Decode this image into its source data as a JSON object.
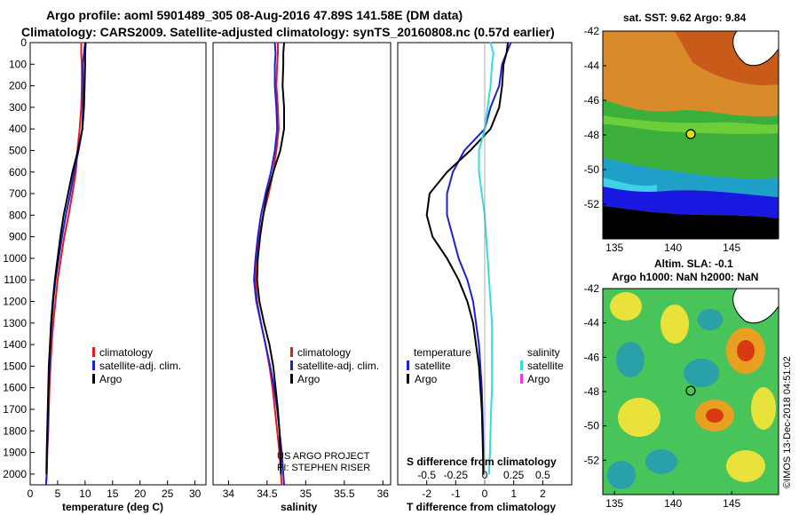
{
  "header": {
    "line1": "Argo profile: aoml 5901489_305 08-Aug-2016 47.89S 141.58E (DM data)",
    "line2": "Climatology: CARS2009. Satellite-adjusted climatology: synTS_20160808.nc (0.57d earlier)"
  },
  "colors": {
    "climatology": "#e41a1c",
    "satellite": "#1f1fd6",
    "argo": "#000000",
    "salinity_satellite": "#33dddd",
    "salinity_argo": "#ee33ee"
  },
  "chart_data": [
    {
      "type": "line",
      "name": "temperature",
      "xlabel": "temperature (deg C)",
      "xlim": [
        0,
        32
      ],
      "xticks": [
        "0",
        "5",
        "10",
        "15",
        "20",
        "25",
        "30"
      ],
      "ylim": [
        2050,
        0
      ],
      "yticks": [
        "0",
        "100",
        "200",
        "300",
        "400",
        "500",
        "600",
        "700",
        "800",
        "900",
        "1000",
        "1100",
        "1200",
        "1300",
        "1400",
        "1500",
        "1600",
        "1700",
        "1800",
        "1900",
        "2000"
      ],
      "legend": [
        "climatology",
        "satellite-adj. clim.",
        "Argo"
      ],
      "series": [
        {
          "name": "climatology",
          "color": "#e41a1c",
          "x": [
            9.3,
            9.3,
            9.4,
            9.4,
            9.3,
            9.0,
            8.6,
            8.3,
            7.7,
            7.0,
            6.2,
            5.6,
            5.0,
            4.6,
            4.2,
            3.9,
            3.7,
            3.5,
            3.4,
            3.3,
            3.1,
            3.0,
            2.9
          ],
          "y": [
            0,
            50,
            100,
            200,
            300,
            400,
            500,
            600,
            700,
            800,
            900,
            1000,
            1100,
            1200,
            1300,
            1400,
            1500,
            1600,
            1700,
            1800,
            1900,
            2000,
            2050
          ]
        },
        {
          "name": "satellite-adj. clim.",
          "color": "#1f1fd6",
          "x": [
            10.0,
            9.8,
            9.6,
            9.6,
            9.6,
            9.5,
            8.8,
            8.0,
            7.3,
            6.5,
            5.8,
            5.2,
            4.6,
            4.2,
            3.9,
            3.7,
            3.5,
            3.4,
            3.3,
            3.2,
            3.1,
            3.0,
            2.9
          ],
          "y": [
            0,
            50,
            100,
            200,
            300,
            400,
            500,
            600,
            700,
            800,
            900,
            1000,
            1100,
            1200,
            1300,
            1400,
            1500,
            1600,
            1700,
            1800,
            1900,
            2000,
            2050
          ]
        },
        {
          "name": "Argo",
          "color": "#000000",
          "x": [
            10.1,
            10.0,
            10.0,
            9.9,
            9.8,
            9.5,
            8.7,
            7.7,
            6.9,
            6.1,
            5.5,
            5.0,
            4.5,
            4.1,
            3.8,
            3.6,
            3.4,
            3.3,
            3.2,
            3.1,
            3.0,
            2.95
          ],
          "y": [
            0,
            50,
            100,
            200,
            300,
            400,
            500,
            600,
            700,
            800,
            900,
            1000,
            1100,
            1200,
            1300,
            1400,
            1500,
            1600,
            1700,
            1800,
            1900,
            2000
          ]
        }
      ]
    },
    {
      "type": "line",
      "name": "salinity",
      "xlabel": "salinity",
      "xlim": [
        33.8,
        36.1
      ],
      "xticks": [
        "34",
        "34.5",
        "35",
        "35.5",
        "36"
      ],
      "ylim": [
        2050,
        0
      ],
      "legend": [
        "climatology",
        "satellite-adj. clim.",
        "Argo"
      ],
      "series": [
        {
          "name": "climatology",
          "color": "#e41a1c",
          "x": [
            34.64,
            34.64,
            34.63,
            34.62,
            34.64,
            34.65,
            34.62,
            34.58,
            34.52,
            34.45,
            34.4,
            34.37,
            34.35,
            34.37,
            34.42,
            34.48,
            34.53,
            34.57,
            34.6,
            34.63,
            34.66,
            34.68,
            34.69
          ],
          "y": [
            0,
            50,
            100,
            200,
            300,
            400,
            500,
            600,
            700,
            800,
            900,
            1000,
            1100,
            1200,
            1300,
            1400,
            1500,
            1600,
            1700,
            1800,
            1900,
            2000,
            2050
          ]
        },
        {
          "name": "satellite-adj. clim.",
          "color": "#1f1fd6",
          "x": [
            34.6,
            34.61,
            34.6,
            34.6,
            34.62,
            34.63,
            34.6,
            34.55,
            34.48,
            34.42,
            34.38,
            34.35,
            34.33,
            34.36,
            34.42,
            34.48,
            34.54,
            34.59,
            34.63,
            34.66,
            34.69,
            34.71,
            34.72
          ],
          "y": [
            0,
            50,
            100,
            200,
            300,
            400,
            500,
            600,
            700,
            800,
            900,
            1000,
            1100,
            1200,
            1300,
            1400,
            1500,
            1600,
            1700,
            1800,
            1900,
            2000,
            2050
          ]
        },
        {
          "name": "Argo",
          "color": "#000000",
          "x": [
            34.72,
            34.71,
            34.71,
            34.7,
            34.72,
            34.72,
            34.67,
            34.58,
            34.5,
            34.45,
            34.41,
            34.38,
            34.37,
            34.4,
            34.46,
            34.53,
            34.58,
            34.61,
            34.64,
            34.66,
            34.67,
            34.68
          ],
          "y": [
            0,
            50,
            100,
            200,
            300,
            400,
            500,
            600,
            700,
            800,
            900,
            1000,
            1100,
            1200,
            1300,
            1400,
            1500,
            1600,
            1700,
            1800,
            1900,
            2000
          ]
        }
      ],
      "annotation_line1": "US ARGO PROJECT",
      "annotation_line2": "PI: STEPHEN RISER"
    },
    {
      "type": "line",
      "name": "differences",
      "xlabel": "T difference from climatology",
      "xlim": [
        -3,
        3
      ],
      "xticks": [
        "-2",
        "-1",
        "0",
        "1",
        "2"
      ],
      "x2label": "S difference from climatology",
      "x2ticks": [
        "-0.5",
        "-0.25",
        "0",
        "0.25",
        "0.5"
      ],
      "ylim": [
        2050,
        0
      ],
      "legend_left_title": "temperature",
      "legend_left": [
        "satellite",
        "Argo"
      ],
      "legend_right_title": "salinity",
      "legend_right": [
        "satellite",
        "Argo"
      ],
      "series": [
        {
          "name": "T satellite",
          "color": "#1f1fd6",
          "x": [
            0.9,
            0.75,
            0.6,
            0.5,
            0.2,
            0.0,
            -0.7,
            -1.1,
            -1.3,
            -1.3,
            -1.1,
            -0.9,
            -0.6,
            -0.4,
            -0.3,
            -0.2,
            -0.15,
            -0.1,
            -0.08,
            -0.06,
            -0.05,
            -0.05
          ],
          "y": [
            0,
            50,
            100,
            200,
            300,
            400,
            500,
            600,
            700,
            800,
            900,
            1000,
            1100,
            1200,
            1300,
            1400,
            1500,
            1600,
            1700,
            1800,
            1900,
            2000
          ]
        },
        {
          "name": "T Argo",
          "color": "#000000",
          "x": [
            0.8,
            0.75,
            0.65,
            0.6,
            0.5,
            0.2,
            -0.5,
            -1.3,
            -1.9,
            -2.0,
            -1.8,
            -1.3,
            -0.9,
            -0.6,
            -0.4,
            -0.3,
            -0.2,
            -0.15,
            -0.1,
            -0.08,
            -0.06,
            -0.05
          ],
          "y": [
            0,
            50,
            100,
            200,
            300,
            400,
            500,
            600,
            700,
            800,
            900,
            1000,
            1100,
            1200,
            1300,
            1400,
            1500,
            1600,
            1700,
            1800,
            1900,
            2000
          ]
        },
        {
          "name": "S satellite",
          "color": "#33dddd",
          "x": [
            0.2,
            0.3,
            0.25,
            0.2,
            0.1,
            0.0,
            -0.2,
            -0.2,
            -0.1,
            0.0,
            0.05,
            0.1,
            0.15,
            0.2,
            0.25,
            0.25,
            0.25,
            0.25,
            0.22,
            0.2,
            0.18,
            0.15
          ],
          "y": [
            0,
            50,
            100,
            200,
            300,
            400,
            500,
            600,
            700,
            800,
            900,
            1000,
            1100,
            1200,
            1300,
            1400,
            1500,
            1600,
            1700,
            1800,
            1900,
            2000
          ]
        }
      ]
    }
  ],
  "maps": [
    {
      "name": "sst-map",
      "title": "sat. SST: 9.62 Argo: 9.84",
      "yticks": [
        "-42",
        "-44",
        "-46",
        "-48",
        "-50",
        "-52"
      ],
      "xticks": [
        "135",
        "140",
        "145"
      ],
      "lat_range": [
        -54,
        -42
      ],
      "lon_range": [
        134,
        149
      ],
      "profile_lat": -47.89,
      "profile_lon": 141.58
    },
    {
      "name": "sla-map",
      "title_line1": "Altim. SLA: -0.1",
      "title_line2": "Argo h1000: NaN h2000: NaN",
      "yticks": [
        "-42",
        "-44",
        "-46",
        "-48",
        "-50",
        "-52"
      ],
      "xticks": [
        "135",
        "140",
        "145"
      ],
      "lat_range": [
        -54,
        -42
      ],
      "lon_range": [
        134,
        149
      ],
      "profile_lat": -47.89,
      "profile_lon": 141.58
    }
  ],
  "credit": "©IMOS 13-Dec-2018 04:51:02"
}
